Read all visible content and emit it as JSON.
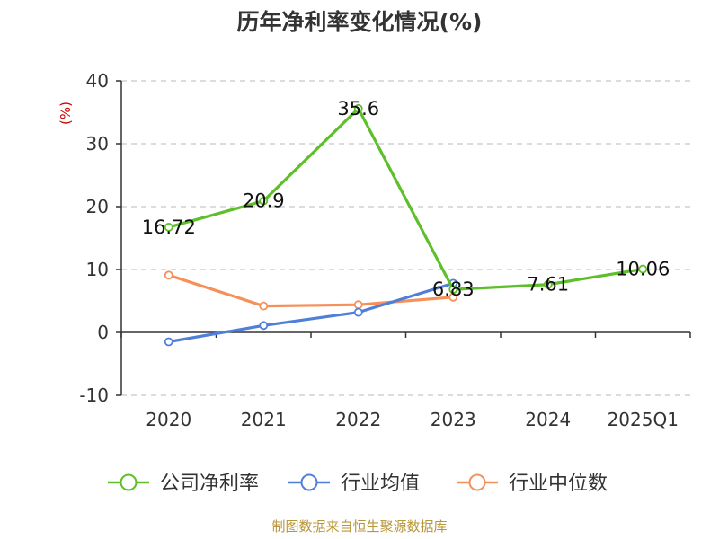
{
  "chart_data": {
    "type": "line",
    "title": "历年净利率变化情况(%)",
    "ylabel": "(%)",
    "xlabel": "",
    "ylim": [
      -10,
      40
    ],
    "yticks": [
      40,
      30,
      20,
      10,
      0,
      -10
    ],
    "categories": [
      "2020",
      "2021",
      "2022",
      "2023",
      "2024",
      "2025Q1"
    ],
    "grid": true,
    "legend_position": "bottom",
    "series": [
      {
        "name": "公司净利率",
        "color": "#5dbf2a",
        "values": [
          16.72,
          20.9,
          35.6,
          6.83,
          7.61,
          10.06
        ],
        "labels": [
          "16.72",
          "20.9",
          "35.6",
          "6.83",
          "7.61",
          "10.06"
        ]
      },
      {
        "name": "行业均值",
        "color": "#4f7fd8",
        "values": [
          -1.5,
          1.1,
          3.2,
          7.8,
          null,
          null
        ]
      },
      {
        "name": "行业中位数",
        "color": "#f5905a",
        "values": [
          9.1,
          4.2,
          4.4,
          5.6,
          null,
          null
        ]
      }
    ]
  },
  "source": "制图数据来自恒生聚源数据库"
}
